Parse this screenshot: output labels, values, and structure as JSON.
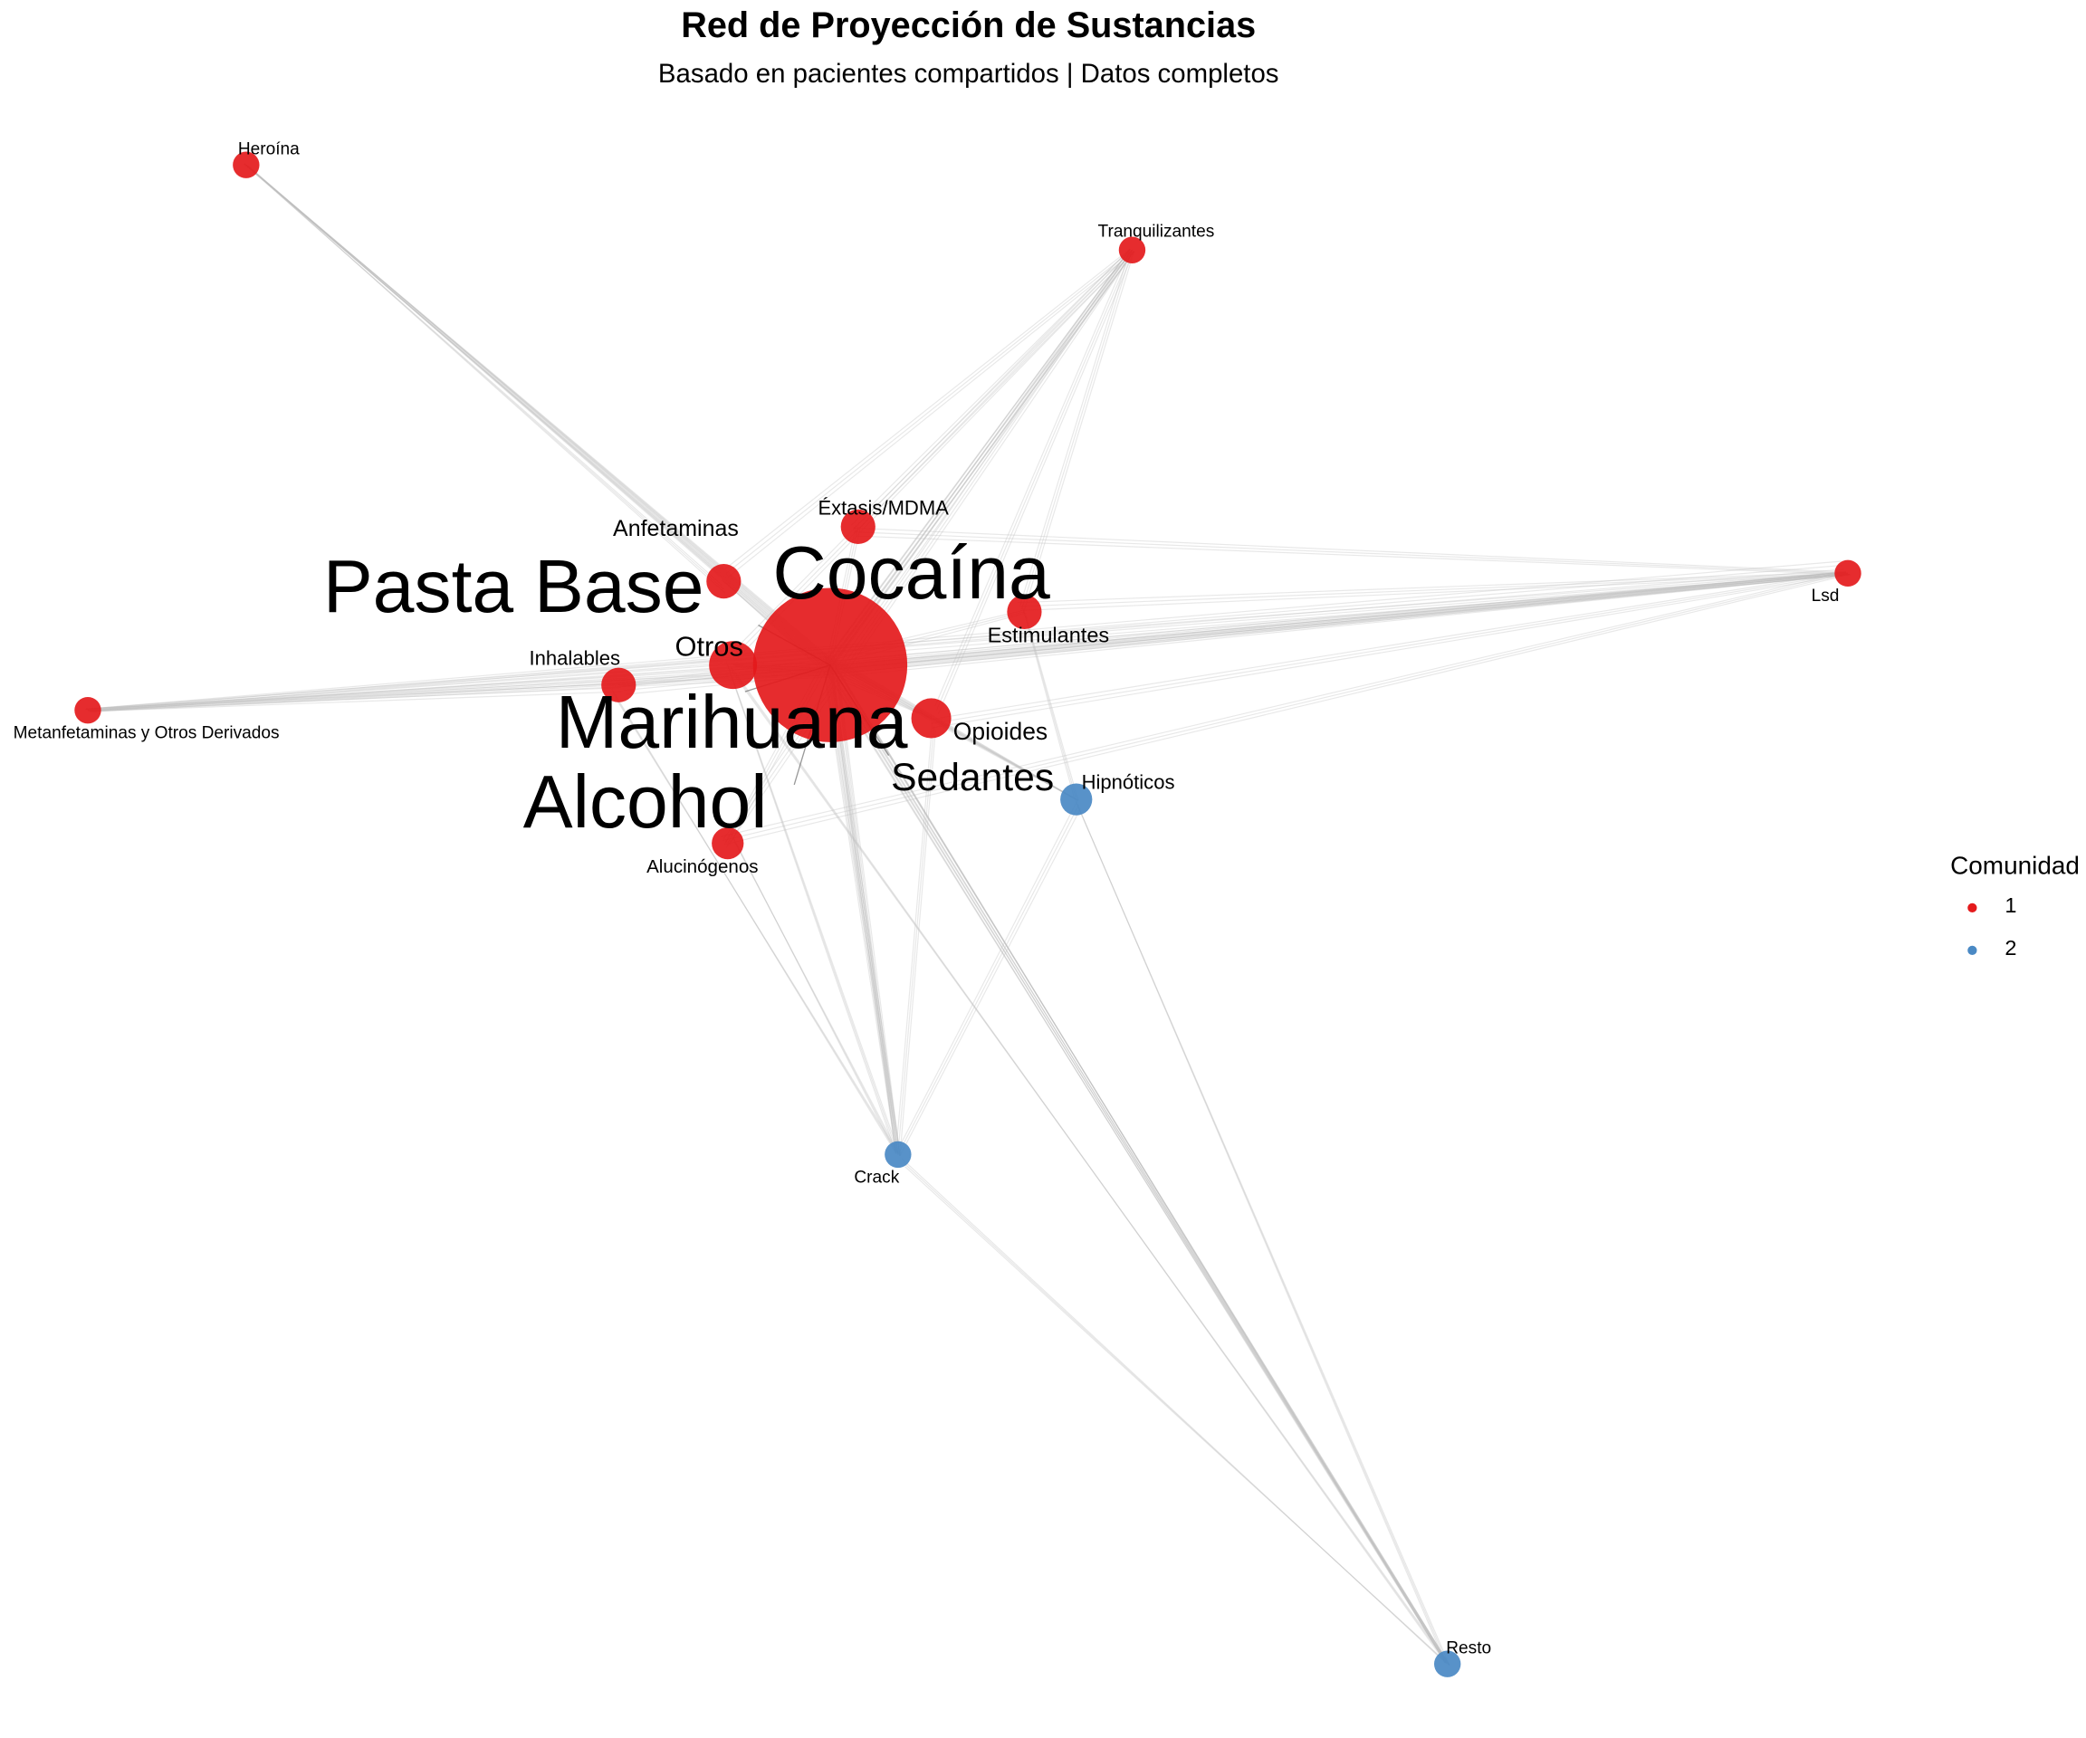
{
  "title": "Red de Proyección de Sustancias",
  "subtitle": "Basado en pacientes compartidos | Datos completos",
  "legend": {
    "title": "Comunidad",
    "items": [
      {
        "label": "1",
        "color": "#E41A1C"
      },
      {
        "label": "2",
        "color": "#4A89C4"
      }
    ]
  },
  "colors": {
    "community_1": "#E41A1C",
    "community_2": "#4A89C4",
    "edge": "#bdbdbd"
  },
  "nodes": [
    {
      "id": "cocaina",
      "label": "Cocaína",
      "community": 1
    },
    {
      "id": "marihuana",
      "label": "Marihuana",
      "community": 1
    },
    {
      "id": "alcohol",
      "label": "Alcohol",
      "community": 1
    },
    {
      "id": "pasta_base",
      "label": "Pasta Base",
      "community": 1
    },
    {
      "id": "sedantes",
      "label": "Sedantes",
      "community": 1
    },
    {
      "id": "otros",
      "label": "Otros",
      "community": 1
    },
    {
      "id": "opioides",
      "label": "Opioides",
      "community": 1
    },
    {
      "id": "anfetaminas",
      "label": "Anfetaminas",
      "community": 1
    },
    {
      "id": "extasis",
      "label": "Éxtasis/MDMA",
      "community": 1
    },
    {
      "id": "estimulantes",
      "label": "Estimulantes",
      "community": 1
    },
    {
      "id": "inhalables",
      "label": "Inhalables",
      "community": 1
    },
    {
      "id": "alucinogenos",
      "label": "Alucinógenos",
      "community": 1
    },
    {
      "id": "heroina",
      "label": "Heroína",
      "community": 1
    },
    {
      "id": "tranquilizantes",
      "label": "Tranquilizantes",
      "community": 1
    },
    {
      "id": "lsd",
      "label": "Lsd",
      "community": 1
    },
    {
      "id": "metanfetaminas",
      "label": "Metanfetaminas y Otros Derivados",
      "community": 1
    },
    {
      "id": "hipnoticos",
      "label": "Hipnóticos",
      "community": 2
    },
    {
      "id": "crack",
      "label": "Crack",
      "community": 2
    },
    {
      "id": "resto",
      "label": "Resto",
      "community": 2
    }
  ],
  "edges": [
    [
      "cocaina",
      "marihuana"
    ],
    [
      "cocaina",
      "alcohol"
    ],
    [
      "cocaina",
      "pasta_base"
    ],
    [
      "cocaina",
      "sedantes"
    ],
    [
      "cocaina",
      "otros"
    ],
    [
      "cocaina",
      "opioides"
    ],
    [
      "cocaina",
      "anfetaminas"
    ],
    [
      "cocaina",
      "extasis"
    ],
    [
      "cocaina",
      "estimulantes"
    ],
    [
      "cocaina",
      "inhalables"
    ],
    [
      "cocaina",
      "alucinogenos"
    ],
    [
      "cocaina",
      "heroina"
    ],
    [
      "cocaina",
      "tranquilizantes"
    ],
    [
      "cocaina",
      "lsd"
    ],
    [
      "cocaina",
      "metanfetaminas"
    ],
    [
      "cocaina",
      "hipnoticos"
    ],
    [
      "cocaina",
      "crack"
    ],
    [
      "cocaina",
      "resto"
    ],
    [
      "marihuana",
      "alcohol"
    ],
    [
      "marihuana",
      "pasta_base"
    ],
    [
      "marihuana",
      "otros"
    ],
    [
      "marihuana",
      "sedantes"
    ],
    [
      "marihuana",
      "crack"
    ],
    [
      "marihuana",
      "resto"
    ],
    [
      "marihuana",
      "heroina"
    ],
    [
      "marihuana",
      "tranquilizantes"
    ],
    [
      "marihuana",
      "lsd"
    ],
    [
      "marihuana",
      "metanfetaminas"
    ],
    [
      "alcohol",
      "pasta_base"
    ],
    [
      "alcohol",
      "crack"
    ],
    [
      "alcohol",
      "resto"
    ],
    [
      "alcohol",
      "tranquilizantes"
    ],
    [
      "alcohol",
      "lsd"
    ],
    [
      "alcohol",
      "metanfetaminas"
    ],
    [
      "alcohol",
      "heroina"
    ],
    [
      "alcohol",
      "hipnoticos"
    ],
    [
      "pasta_base",
      "heroina"
    ],
    [
      "pasta_base",
      "tranquilizantes"
    ],
    [
      "pasta_base",
      "lsd"
    ],
    [
      "pasta_base",
      "metanfetaminas"
    ],
    [
      "pasta_base",
      "crack"
    ],
    [
      "pasta_base",
      "resto"
    ],
    [
      "otros",
      "tranquilizantes"
    ],
    [
      "otros",
      "lsd"
    ],
    [
      "otros",
      "metanfetaminas"
    ],
    [
      "otros",
      "crack"
    ],
    [
      "otros",
      "resto"
    ],
    [
      "opioides",
      "lsd"
    ],
    [
      "opioides",
      "crack"
    ],
    [
      "opioides",
      "tranquilizantes"
    ],
    [
      "estimulantes",
      "lsd"
    ],
    [
      "estimulantes",
      "tranquilizantes"
    ],
    [
      "estimulantes",
      "hipnoticos"
    ],
    [
      "inhalables",
      "metanfetaminas"
    ],
    [
      "inhalables",
      "lsd"
    ],
    [
      "inhalables",
      "crack"
    ],
    [
      "sedantes",
      "hipnoticos"
    ],
    [
      "sedantes",
      "crack"
    ],
    [
      "sedantes",
      "resto"
    ],
    [
      "sedantes",
      "lsd"
    ],
    [
      "extasis",
      "tranquilizantes"
    ],
    [
      "extasis",
      "lsd"
    ],
    [
      "anfetaminas",
      "heroina"
    ],
    [
      "anfetaminas",
      "tranquilizantes"
    ],
    [
      "alucinogenos",
      "crack"
    ],
    [
      "alucinogenos",
      "lsd"
    ],
    [
      "alucinogenos",
      "tranquilizantes"
    ],
    [
      "hipnoticos",
      "resto"
    ],
    [
      "hipnoticos",
      "crack"
    ],
    [
      "crack",
      "resto"
    ],
    [
      "lsd",
      "metanfetaminas"
    ]
  ]
}
